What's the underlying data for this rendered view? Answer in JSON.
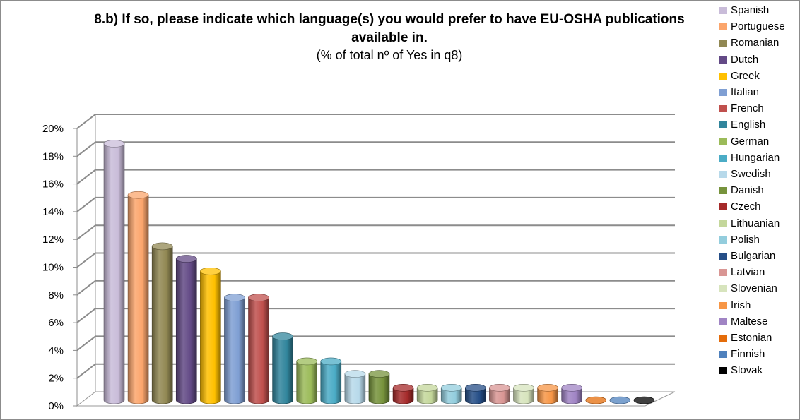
{
  "chart_data": {
    "type": "bar",
    "title": "8.b) If so, please indicate which language(s) you would prefer to have EU-OSHA publications available in.",
    "subtitle": "(% of total nº of Yes in q8)",
    "categories": [
      "Spanish",
      "Portuguese",
      "Romanian",
      "Dutch",
      "Greek",
      "Italian",
      "French",
      "English",
      "German",
      "Hungarian",
      "Swedish",
      "Danish",
      "Czech",
      "Lithuanian",
      "Polish",
      "Bulgarian",
      "Latvian",
      "Slovenian",
      "Irish",
      "Maltese",
      "Estonian",
      "Finnish",
      "Slovak"
    ],
    "values": [
      18.5,
      14.8,
      11.1,
      10.2,
      9.3,
      7.4,
      7.4,
      4.6,
      2.8,
      2.8,
      1.9,
      1.9,
      0.9,
      0.9,
      0.9,
      0.9,
      0.9,
      0.9,
      0.9,
      0.9,
      0,
      0,
      0
    ],
    "colors": [
      "#c9bcd9",
      "#fba56c",
      "#918853",
      "#634a86",
      "#ffc000",
      "#7f9fd3",
      "#c0504d",
      "#31859c",
      "#9bbb59",
      "#4bacc6",
      "#b7d9ea",
      "#77933c",
      "#a52a2a",
      "#c4d79b",
      "#93cddd",
      "#254e87",
      "#d99694",
      "#d7e4bd",
      "#f79646",
      "#a084c4",
      "#e46c0a",
      "#4f81bd",
      "#000000"
    ],
    "yticks": [
      "0%",
      "2%",
      "4%",
      "6%",
      "8%",
      "10%",
      "12%",
      "14%",
      "16%",
      "18%",
      "20%"
    ],
    "ylim": [
      0,
      20
    ],
    "xlabel": "",
    "ylabel": "",
    "grid": true,
    "legend_position": "right",
    "three_d": true
  }
}
